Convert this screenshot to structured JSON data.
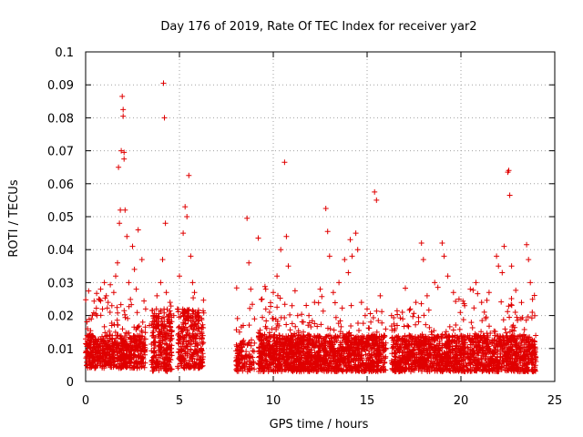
{
  "chart_data": {
    "type": "scatter",
    "title": "Day 176 of 2019, Rate Of TEC Index for receiver yar2",
    "xlabel": "GPS time / hours",
    "ylabel": "ROTI / TECUs",
    "xlim": [
      0,
      25
    ],
    "ylim": [
      0,
      0.1
    ],
    "xticks": [
      0,
      5,
      10,
      15,
      20,
      25
    ],
    "yticks": [
      0,
      0.01,
      0.02,
      0.03,
      0.04,
      0.05,
      0.06,
      0.07,
      0.08,
      0.09,
      0.1
    ],
    "xtick_labels": [
      "0",
      "5",
      "10",
      "15",
      "20",
      "25"
    ],
    "ytick_labels": [
      "0",
      "0.01",
      "0.02",
      "0.03",
      "0.04",
      "0.05",
      "0.06",
      "0.07",
      "0.08",
      "0.09",
      "0.1"
    ],
    "grid": true,
    "marker": "+",
    "color": "#e00000",
    "series": [
      {
        "name": "ROTI",
        "points": [
          [
            0.1,
            0.016
          ],
          [
            0.2,
            0.014
          ],
          [
            0.3,
            0.019
          ],
          [
            0.5,
            0.012
          ],
          [
            0.6,
            0.02
          ],
          [
            0.7,
            0.025
          ],
          [
            0.8,
            0.028
          ],
          [
            0.9,
            0.022
          ],
          [
            1.0,
            0.03
          ],
          [
            1.1,
            0.026
          ],
          [
            1.2,
            0.024
          ],
          [
            1.3,
            0.021
          ],
          [
            1.4,
            0.023
          ],
          [
            1.5,
            0.027
          ],
          [
            1.6,
            0.032
          ],
          [
            1.7,
            0.036
          ],
          [
            1.75,
            0.065
          ],
          [
            1.8,
            0.048
          ],
          [
            1.85,
            0.052
          ],
          [
            1.9,
            0.07
          ],
          [
            1.95,
            0.0865
          ],
          [
            2.0,
            0.0825
          ],
          [
            2.0,
            0.0805
          ],
          [
            2.05,
            0.0695
          ],
          [
            2.05,
            0.0675
          ],
          [
            2.1,
            0.052
          ],
          [
            2.2,
            0.044
          ],
          [
            2.3,
            0.03
          ],
          [
            2.5,
            0.041
          ],
          [
            2.6,
            0.034
          ],
          [
            2.7,
            0.028
          ],
          [
            2.8,
            0.046
          ],
          [
            3.0,
            0.037
          ],
          [
            3.2,
            0.022
          ],
          [
            3.4,
            0.017
          ],
          [
            3.6,
            0.02
          ],
          [
            3.8,
            0.026
          ],
          [
            4.0,
            0.03
          ],
          [
            4.1,
            0.037
          ],
          [
            4.15,
            0.0905
          ],
          [
            4.2,
            0.08
          ],
          [
            4.25,
            0.048
          ],
          [
            4.3,
            0.027
          ],
          [
            4.5,
            0.024
          ],
          [
            4.7,
            0.02
          ],
          [
            4.9,
            0.022
          ],
          [
            5.0,
            0.032
          ],
          [
            5.2,
            0.045
          ],
          [
            5.3,
            0.053
          ],
          [
            5.4,
            0.05
          ],
          [
            5.5,
            0.0625
          ],
          [
            5.6,
            0.038
          ],
          [
            5.7,
            0.03
          ],
          [
            5.8,
            0.027
          ],
          [
            6.0,
            0.02
          ],
          [
            6.2,
            0.013
          ],
          [
            8.2,
            0.015
          ],
          [
            8.4,
            0.017
          ],
          [
            8.6,
            0.0495
          ],
          [
            8.7,
            0.036
          ],
          [
            8.8,
            0.028
          ],
          [
            9.0,
            0.019
          ],
          [
            9.2,
            0.0435
          ],
          [
            9.4,
            0.025
          ],
          [
            9.6,
            0.022
          ],
          [
            9.8,
            0.021
          ],
          [
            10.0,
            0.027
          ],
          [
            10.2,
            0.032
          ],
          [
            10.4,
            0.04
          ],
          [
            10.6,
            0.0665
          ],
          [
            10.7,
            0.044
          ],
          [
            10.8,
            0.035
          ],
          [
            11.0,
            0.023
          ],
          [
            11.3,
            0.02
          ],
          [
            11.6,
            0.018
          ],
          [
            11.9,
            0.02
          ],
          [
            12.2,
            0.024
          ],
          [
            12.5,
            0.028
          ],
          [
            12.8,
            0.0525
          ],
          [
            12.9,
            0.0455
          ],
          [
            13.0,
            0.038
          ],
          [
            13.2,
            0.027
          ],
          [
            13.5,
            0.03
          ],
          [
            13.8,
            0.037
          ],
          [
            14.0,
            0.033
          ],
          [
            14.1,
            0.043
          ],
          [
            14.2,
            0.038
          ],
          [
            14.4,
            0.045
          ],
          [
            14.5,
            0.04
          ],
          [
            14.7,
            0.024
          ],
          [
            14.9,
            0.02
          ],
          [
            15.0,
            0.022
          ],
          [
            15.2,
            0.018
          ],
          [
            15.4,
            0.0575
          ],
          [
            15.5,
            0.055
          ],
          [
            15.7,
            0.026
          ],
          [
            16.3,
            0.02
          ],
          [
            16.6,
            0.017
          ],
          [
            16.9,
            0.019
          ],
          [
            17.3,
            0.022
          ],
          [
            17.6,
            0.024
          ],
          [
            17.9,
            0.042
          ],
          [
            18.0,
            0.037
          ],
          [
            18.2,
            0.026
          ],
          [
            18.6,
            0.03
          ],
          [
            19.0,
            0.042
          ],
          [
            19.1,
            0.038
          ],
          [
            19.3,
            0.032
          ],
          [
            19.6,
            0.027
          ],
          [
            19.9,
            0.025
          ],
          [
            20.2,
            0.023
          ],
          [
            20.5,
            0.028
          ],
          [
            20.8,
            0.03
          ],
          [
            21.1,
            0.024
          ],
          [
            21.5,
            0.027
          ],
          [
            21.9,
            0.038
          ],
          [
            22.0,
            0.035
          ],
          [
            22.2,
            0.033
          ],
          [
            22.3,
            0.041
          ],
          [
            22.5,
            0.0635
          ],
          [
            22.55,
            0.064
          ],
          [
            22.6,
            0.0565
          ],
          [
            22.7,
            0.035
          ],
          [
            22.9,
            0.021
          ],
          [
            23.2,
            0.019
          ],
          [
            23.5,
            0.0415
          ],
          [
            23.6,
            0.037
          ],
          [
            23.7,
            0.03
          ],
          [
            23.8,
            0.021
          ]
        ]
      }
    ],
    "clusters": [
      {
        "x0": 0.0,
        "x1": 3.2,
        "base_min": 0.004,
        "base_max": 0.014,
        "count": 650
      },
      {
        "x0": 3.5,
        "x1": 4.6,
        "base_min": 0.003,
        "base_max": 0.022,
        "count": 260
      },
      {
        "x0": 4.9,
        "x1": 6.3,
        "base_min": 0.004,
        "base_max": 0.022,
        "count": 300
      },
      {
        "x0": 8.0,
        "x1": 9.0,
        "base_min": 0.003,
        "base_max": 0.012,
        "count": 120
      },
      {
        "x0": 9.2,
        "x1": 16.0,
        "base_min": 0.003,
        "base_max": 0.014,
        "count": 1500
      },
      {
        "x0": 16.3,
        "x1": 24.0,
        "base_min": 0.003,
        "base_max": 0.014,
        "count": 1550
      }
    ]
  }
}
